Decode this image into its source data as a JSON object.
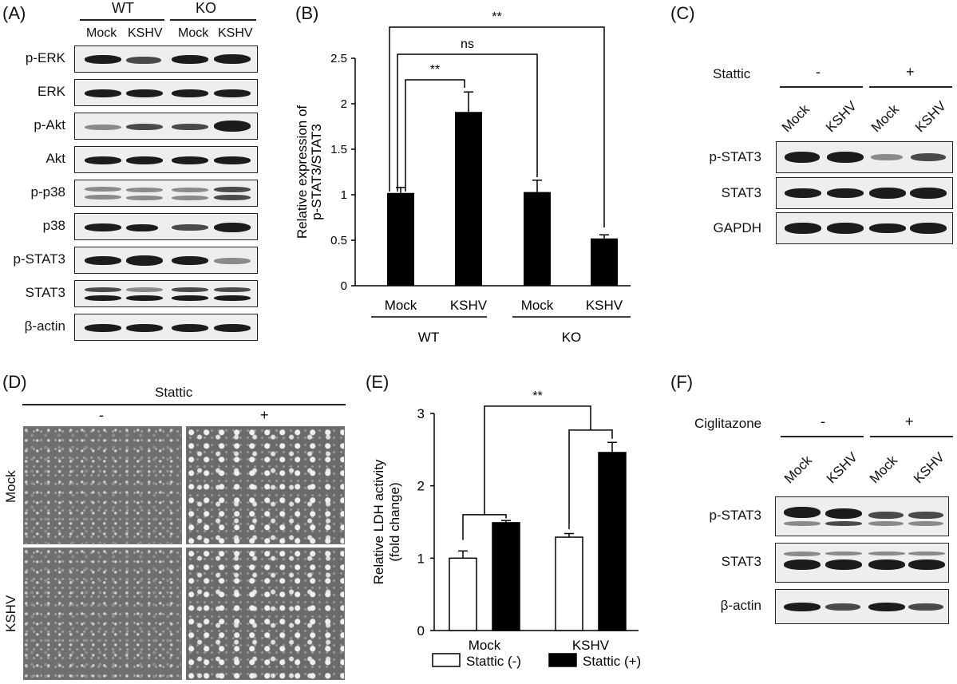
{
  "panels": {
    "A": {
      "letter": "(A)",
      "groups": [
        "WT",
        "KO"
      ],
      "lanes": [
        "Mock",
        "KSHV",
        "Mock",
        "KSHV"
      ],
      "rows": [
        "p-ERK",
        "ERK",
        "p-Akt",
        "Akt",
        "p-p38",
        "p38",
        "p-STAT3",
        "STAT3",
        "β-actin"
      ]
    },
    "B": {
      "letter": "(B)"
    },
    "C": {
      "letter": "(C)",
      "treatment": "Stattic",
      "minus": "-",
      "plus": "+",
      "lanes": [
        "Mock",
        "KSHV",
        "Mock",
        "KSHV"
      ],
      "rows": [
        "p-STAT3",
        "STAT3",
        "GAPDH"
      ]
    },
    "D": {
      "letter": "(D)",
      "treatment": "Stattic",
      "minus": "-",
      "plus": "+",
      "rows": [
        "Mock",
        "KSHV"
      ]
    },
    "E": {
      "letter": "(E)"
    },
    "F": {
      "letter": "(F)",
      "treatment": "Ciglitazone",
      "minus": "-",
      "plus": "+",
      "lanes": [
        "Mock",
        "KSHV",
        "Mock",
        "KSHV"
      ],
      "rows": [
        "p-STAT3",
        "STAT3",
        "β-actin"
      ]
    }
  },
  "chart_data": [
    {
      "panel": "B",
      "type": "bar",
      "categories": [
        "Mock",
        "KSHV",
        "Mock",
        "KSHV"
      ],
      "groups": [
        "WT",
        "KO"
      ],
      "values": [
        1.02,
        1.91,
        1.03,
        0.52
      ],
      "errors": [
        0.06,
        0.22,
        0.13,
        0.04
      ],
      "ylabel_line1": "Relative expression of",
      "ylabel_line2": "p-STAT3/STAT3",
      "ylim": [
        0,
        2.5
      ],
      "yticks": [
        "0",
        "0.5",
        "1",
        "1.5",
        "2",
        "2.5"
      ],
      "annotations": [
        "**",
        "ns",
        "**"
      ],
      "bar_color": "#000000"
    },
    {
      "panel": "E",
      "type": "bar",
      "categories": [
        "Mock",
        "KSHV"
      ],
      "series": [
        {
          "name": "Stattic (-)",
          "values": [
            1.0,
            1.29
          ],
          "errors": [
            0.1,
            0.05
          ],
          "color": "#ffffff"
        },
        {
          "name": "Stattic (+)",
          "values": [
            1.49,
            2.46
          ],
          "errors": [
            0.03,
            0.14
          ],
          "color": "#000000"
        }
      ],
      "ylabel_line1": "Relative LDH activity",
      "ylabel_line2": "(fold change)",
      "ylim": [
        0,
        3
      ],
      "yticks": [
        "0",
        "1",
        "2",
        "3"
      ],
      "annotations": [
        "**"
      ],
      "legend": "bottom"
    }
  ]
}
